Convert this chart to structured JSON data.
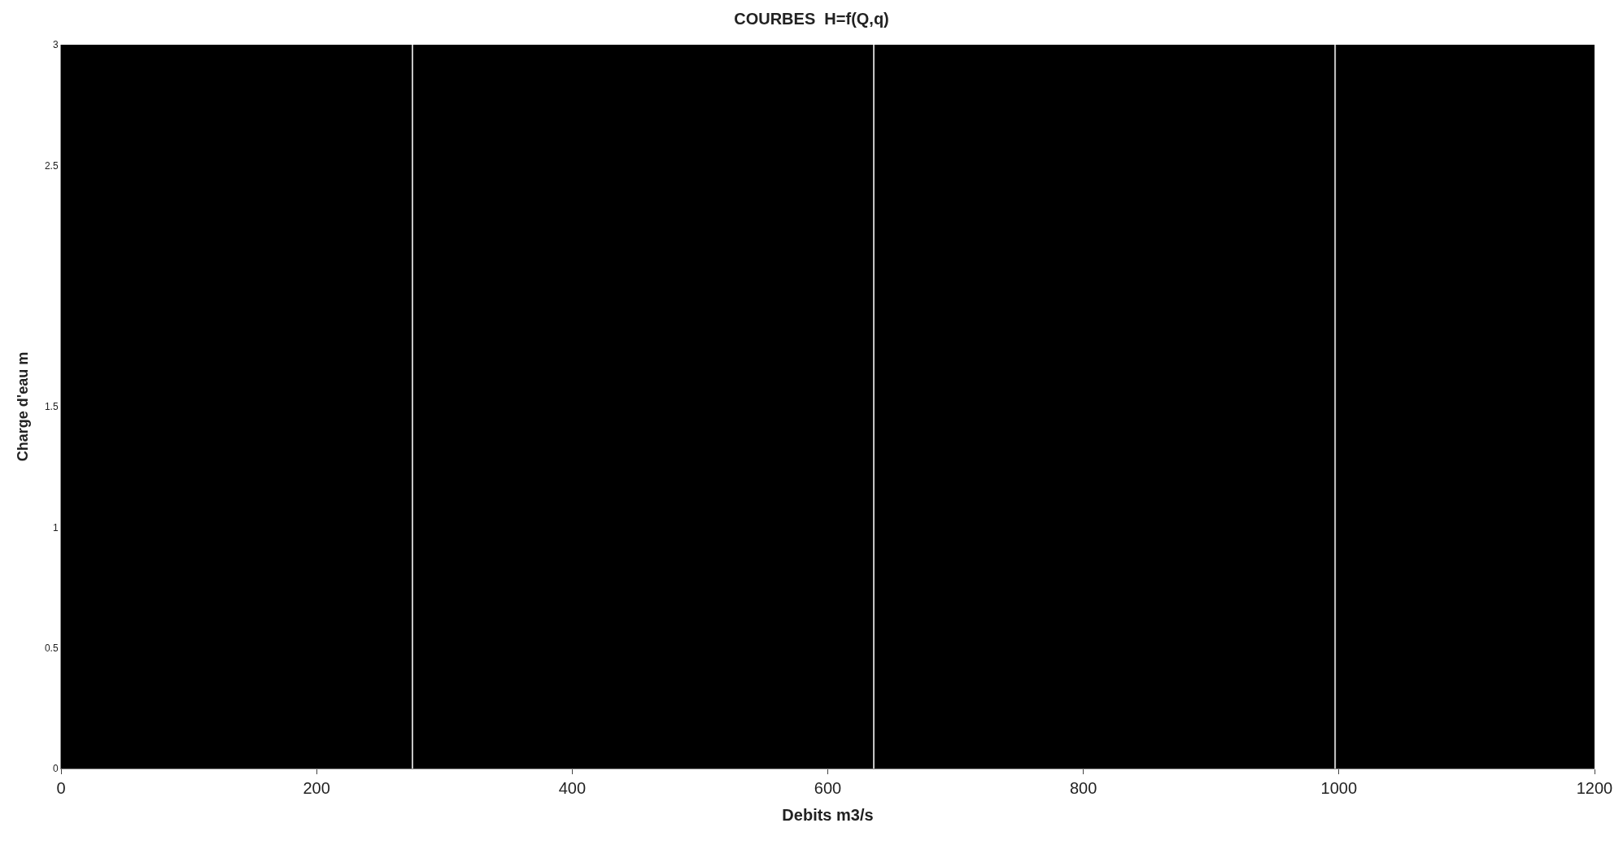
{
  "chart_data": {
    "type": "line",
    "title": "COURBES  H=f(Q,q)",
    "xlabel": "Debits m3/s",
    "ylabel": "Charge d'eau m",
    "xlim": [
      0,
      1200
    ],
    "xticks": [
      0,
      200,
      400,
      600,
      800,
      1000,
      1200
    ],
    "ylim": [
      0,
      3
    ],
    "yticks": [
      0,
      0.5,
      1,
      1.5,
      2.5,
      3
    ],
    "ref_lines": [
      {
        "axis": "x",
        "value": 275,
        "color": "#c8c8c8"
      },
      {
        "axis": "x",
        "value": 636,
        "color": "#c8c8c8"
      },
      {
        "axis": "x",
        "value": 997,
        "color": "#c8c8c8"
      }
    ],
    "grid": false
  }
}
